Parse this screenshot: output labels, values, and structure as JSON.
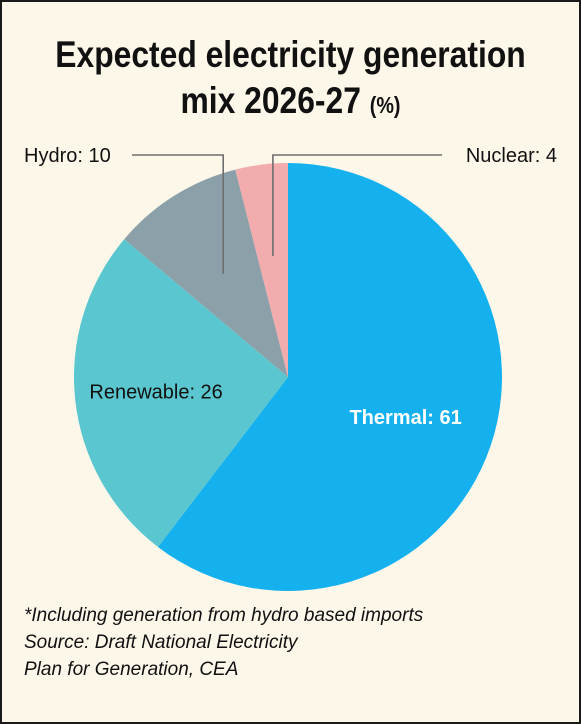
{
  "chart_data": {
    "type": "pie",
    "title": "Expected electricity generation mix 2026-27",
    "title_line1": "Expected electricity generation",
    "title_line2": "mix 2026-27",
    "unit": "(%)",
    "slices": [
      {
        "label": "Thermal",
        "value": 61,
        "color": "#15b1ef",
        "text": "Thermal: 61"
      },
      {
        "label": "Renewable",
        "value": 26,
        "color": "#5ac6cf",
        "text": "Renewable: 26"
      },
      {
        "label": "Hydro",
        "value": 10,
        "color": "#8ba0a9",
        "text": "Hydro: 10"
      },
      {
        "label": "Nuclear",
        "value": 4,
        "color": "#f2acae",
        "text": "Nuclear: 4"
      }
    ],
    "start": "12 o'clock",
    "direction": "clockwise"
  },
  "notes": {
    "footnote": "*Including generation from hydro based imports",
    "source_line1": "Source: Draft National Electricity",
    "source_line2": "Plan for Generation, CEA"
  }
}
